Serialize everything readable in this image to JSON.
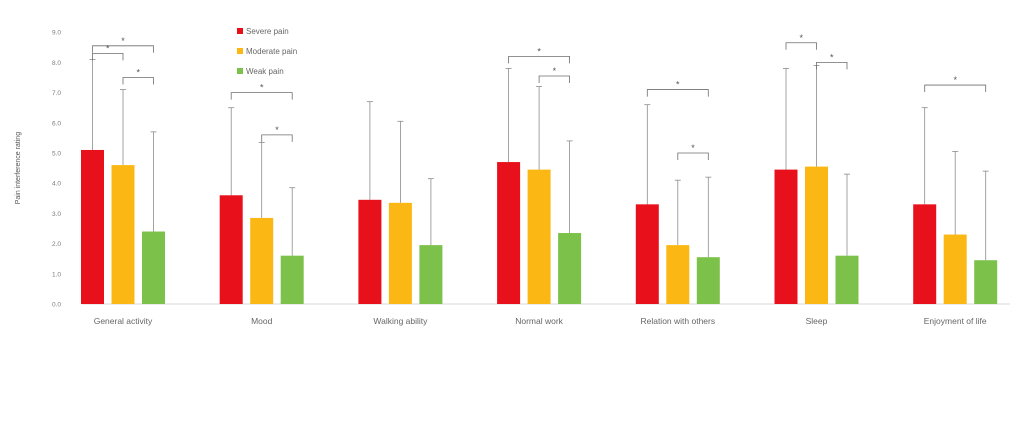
{
  "chart_data": {
    "type": "bar",
    "title": "",
    "xlabel": "",
    "ylabel": "Pain interference rating",
    "ylim": [
      0,
      9
    ],
    "yticks": [
      "0.0",
      "1.0",
      "2.0",
      "3.0",
      "4.0",
      "5.0",
      "6.0",
      "7.0",
      "8.0",
      "9.0"
    ],
    "grid": false,
    "legend_position": "top-left",
    "categories": [
      "General activity",
      "Mood",
      "Walking ability",
      "Normal work",
      "Relation with others",
      "Sleep",
      "Enjoyment of life"
    ],
    "series": [
      {
        "name": "Severe pain",
        "color": "#e8101a",
        "values": [
          5.1,
          3.6,
          3.45,
          4.7,
          3.3,
          4.45,
          3.3
        ],
        "error_upper": [
          8.1,
          6.5,
          6.7,
          7.8,
          6.6,
          7.8,
          6.5
        ]
      },
      {
        "name": "Moderate pain",
        "color": "#fbb814",
        "values": [
          4.6,
          2.85,
          3.35,
          4.45,
          1.95,
          4.55,
          2.3
        ],
        "error_upper": [
          7.1,
          5.35,
          6.05,
          7.2,
          4.1,
          7.9,
          5.05
        ]
      },
      {
        "name": "Weak pain",
        "color": "#7cc24a",
        "values": [
          2.4,
          1.6,
          1.95,
          2.35,
          1.55,
          1.6,
          1.45
        ],
        "error_upper": [
          5.7,
          3.85,
          4.15,
          5.4,
          4.2,
          4.3,
          4.4
        ]
      }
    ],
    "significance": [
      {
        "category": 0,
        "from": 0,
        "to": 2,
        "y": 8.55,
        "label": "*"
      },
      {
        "category": 0,
        "from": 0,
        "to": 1,
        "y": 8.3,
        "label": "*"
      },
      {
        "category": 0,
        "from": 1,
        "to": 2,
        "y": 7.5,
        "label": "*"
      },
      {
        "category": 1,
        "from": 0,
        "to": 2,
        "y": 7.0,
        "label": "*"
      },
      {
        "category": 1,
        "from": 1,
        "to": 2,
        "y": 5.6,
        "label": "*"
      },
      {
        "category": 3,
        "from": 0,
        "to": 2,
        "y": 8.2,
        "label": "*"
      },
      {
        "category": 3,
        "from": 1,
        "to": 2,
        "y": 7.55,
        "label": "*"
      },
      {
        "category": 4,
        "from": 0,
        "to": 2,
        "y": 7.1,
        "label": "*"
      },
      {
        "category": 4,
        "from": 1,
        "to": 2,
        "y": 5.0,
        "label": "*"
      },
      {
        "category": 5,
        "from": 0,
        "to": 1,
        "y": 8.65,
        "label": "*"
      },
      {
        "category": 5,
        "from": 1,
        "to": 2,
        "y": 8.0,
        "label": "*"
      },
      {
        "category": 6,
        "from": 0,
        "to": 2,
        "y": 7.25,
        "label": "*"
      }
    ]
  }
}
